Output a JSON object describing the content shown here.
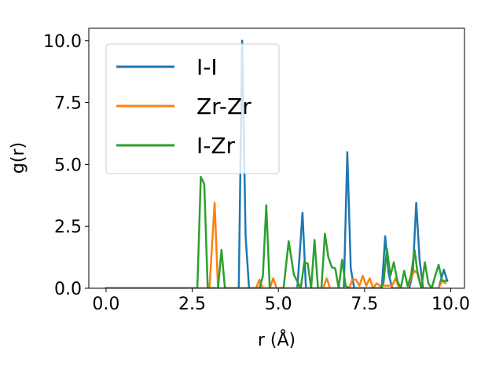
{
  "chart_data": {
    "type": "line",
    "title": "",
    "xlabel": "r (Å)",
    "ylabel": "g(r)",
    "xlim": [
      -0.5,
      10.4
    ],
    "ylim": [
      0,
      10.5
    ],
    "xticks": [
      "0.0",
      "2.5",
      "5.0",
      "7.5",
      "10.0"
    ],
    "yticks": [
      "0.0",
      "2.5",
      "5.0",
      "7.5",
      "10.0"
    ],
    "grid": false,
    "legend_position": "top-left",
    "series": [
      {
        "name": "I-I",
        "color": "#1f77b4",
        "x": [
          0,
          2.5,
          3.85,
          3.95,
          4.05,
          4.15,
          4.25,
          5.55,
          5.7,
          5.8,
          6.9,
          7.0,
          7.1,
          7.2,
          8.0,
          8.1,
          8.2,
          8.3,
          8.8,
          8.9,
          9.0,
          9.1,
          9.2,
          9.65,
          9.8,
          9.9
        ],
        "y": [
          0,
          0,
          0,
          10.0,
          2.1,
          0,
          0,
          0,
          3.05,
          0,
          0,
          5.5,
          0.8,
          0,
          0,
          2.1,
          0.6,
          0,
          0,
          0.6,
          3.45,
          1.1,
          0,
          0,
          0.75,
          0.3
        ]
      },
      {
        "name": "Zr-Zr",
        "color": "#ff7f0e",
        "x": [
          0,
          3.0,
          3.15,
          3.25,
          3.35,
          4.35,
          4.45,
          4.55,
          4.75,
          4.85,
          4.95,
          6.3,
          6.4,
          6.5,
          7.05,
          7.15,
          7.25,
          7.35,
          7.45,
          7.55,
          7.65,
          7.75,
          7.85,
          7.95,
          8.3,
          8.4,
          8.5,
          8.75,
          8.85,
          8.95,
          9.05,
          9.15,
          9.65,
          9.75,
          9.85
        ],
        "y": [
          0,
          0,
          3.45,
          0,
          0,
          0,
          0.35,
          0,
          0,
          0.4,
          0,
          0,
          0.4,
          0,
          0,
          0.35,
          0.35,
          0.1,
          0.5,
          0.1,
          0.4,
          0,
          0.2,
          0.1,
          0.1,
          0.4,
          0,
          0,
          0.4,
          0.7,
          0.6,
          0,
          0,
          0.3,
          0.2
        ]
      },
      {
        "name": "I-Zr",
        "color": "#2ca02c",
        "x": [
          0,
          2.65,
          2.75,
          2.85,
          2.95,
          3.05,
          3.25,
          3.35,
          3.45,
          4.45,
          4.55,
          4.65,
          4.75,
          5.15,
          5.3,
          5.45,
          5.65,
          5.75,
          5.85,
          5.95,
          6.05,
          6.15,
          6.25,
          6.35,
          6.45,
          6.55,
          6.65,
          6.75,
          6.85,
          6.95,
          7.05,
          7.15,
          7.95,
          8.05,
          8.15,
          8.25,
          8.35,
          8.45,
          8.55,
          8.65,
          8.75,
          8.85,
          8.95,
          9.05,
          9.15,
          9.25,
          9.35,
          9.45,
          9.55,
          9.65,
          9.75,
          9.85
        ],
        "y": [
          0,
          0,
          4.5,
          4.2,
          0,
          0,
          0,
          1.55,
          0,
          0,
          0.5,
          3.35,
          0,
          0,
          1.9,
          0.55,
          0,
          1.05,
          1.0,
          0,
          1.95,
          0,
          0,
          2.2,
          1.25,
          0.85,
          0.8,
          0,
          1.15,
          0.1,
          0,
          0,
          0,
          0.2,
          1.6,
          0.5,
          1.05,
          0.3,
          0,
          0.7,
          0.1,
          0.5,
          1.55,
          0.5,
          0,
          1.05,
          0.2,
          0,
          0.5,
          0.95,
          0.3,
          0.3
        ]
      }
    ]
  }
}
